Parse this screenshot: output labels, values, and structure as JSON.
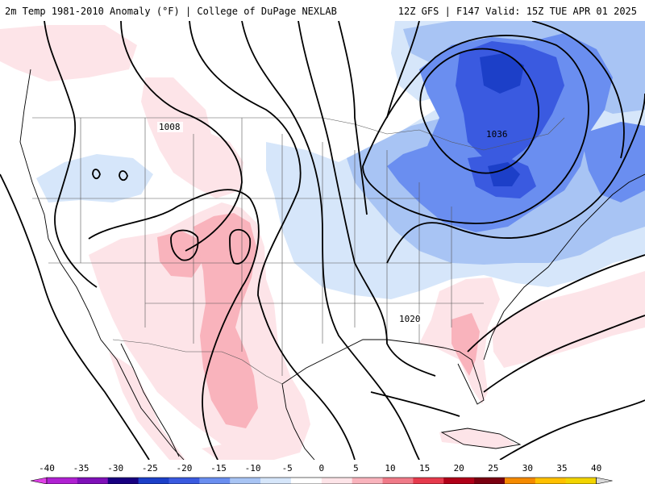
{
  "header": {
    "title_left": "2m Temp 1981-2010 Anomaly (°F) | College of DuPage NEXLAB",
    "title_right": "12Z GFS | F147 Valid: 15Z TUE APR 01 2025"
  },
  "map": {
    "isobar_labels": [
      "1008",
      "1036",
      "1020"
    ]
  },
  "legend": {
    "ticks": [
      "-40",
      "-35",
      "-30",
      "-25",
      "-20",
      "-15",
      "-10",
      "-5",
      "0",
      "5",
      "10",
      "15",
      "20",
      "25",
      "30",
      "35",
      "40"
    ],
    "colors": [
      "#e040e8",
      "#b021d2",
      "#7f10b8",
      "#180080",
      "#1c3fc8",
      "#3a5ae0",
      "#6a8ef0",
      "#a8c4f4",
      "#d6e6fa",
      "#ffffff",
      "#fde4e8",
      "#f9b3bc",
      "#f07a88",
      "#e63a4c",
      "#b00018",
      "#7a0010",
      "#f58a00",
      "#ffc000",
      "#f2d400",
      "#d8d8d8"
    ]
  }
}
